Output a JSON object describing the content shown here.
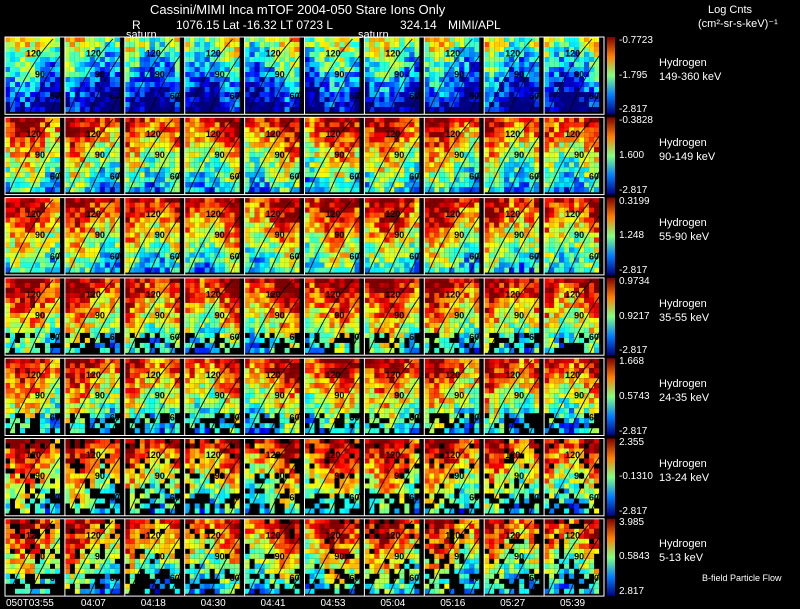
{
  "header": {
    "title_line": "Cassini/MIMI Inca mTOF  2004-050    Stare    Ions Only",
    "r_label": "R",
    "position_line": "1076.15 Lat -16.32 LT 0723 L",
    "l_value": "324.14",
    "credit": "MIMI/APL",
    "saturn_marker_1": "saturn",
    "saturn_marker_2": "saturn",
    "colorbar_title_line1": "Log Cnts",
    "colorbar_title_line2": "(cm²-sr-s-keV)⁻¹"
  },
  "annotations": {
    "flow_label": "B-field Particle Flow"
  },
  "colors": {
    "background": "#000000",
    "text": "#ffffff",
    "grid": "#ffffff",
    "contour": "#000000"
  },
  "chart_data": {
    "type": "heatmap",
    "description_free": true,
    "times": [
      "050T03:55",
      "04:07",
      "04:18",
      "04:30",
      "04:41",
      "04:53",
      "05:04",
      "05:16",
      "05:27",
      "05:39"
    ],
    "contour_labels": [
      "120",
      "90",
      "60"
    ],
    "species": [
      {
        "name": "Hydrogen",
        "range": "149-360 keV",
        "cb_max": "-0.7723",
        "cb_mid": "-1.795",
        "cb_min": "-2.817",
        "intensity": 0.22
      },
      {
        "name": "Hydrogen",
        "range": "90-149 keV",
        "cb_max": "-0.3828",
        "cb_mid": "1.600",
        "cb_min": "-2.817",
        "intensity": 0.55
      },
      {
        "name": "Hydrogen",
        "range": "55-90 keV",
        "cb_max": "0.3199",
        "cb_mid": "1.248",
        "cb_min": "-2.817",
        "intensity": 0.58
      },
      {
        "name": "Hydrogen",
        "range": "35-55 keV",
        "cb_max": "0.9734",
        "cb_mid": "0.9217",
        "cb_min": "-2.817",
        "intensity": 0.6
      },
      {
        "name": "Hydrogen",
        "range": "24-35 keV",
        "cb_max": "1.668",
        "cb_mid": "0.5743",
        "cb_min": "-2.817",
        "intensity": 0.55
      },
      {
        "name": "Hydrogen",
        "range": "13-24 keV",
        "cb_max": "2.355",
        "cb_mid": "-0.1310",
        "cb_min": "-2.817",
        "intensity": 0.58
      },
      {
        "name": "Hydrogen",
        "range": "5-13 keV",
        "cb_max": "3.985",
        "cb_mid": "0.5843",
        "cb_min": "2.817",
        "intensity": 0.55
      }
    ]
  }
}
